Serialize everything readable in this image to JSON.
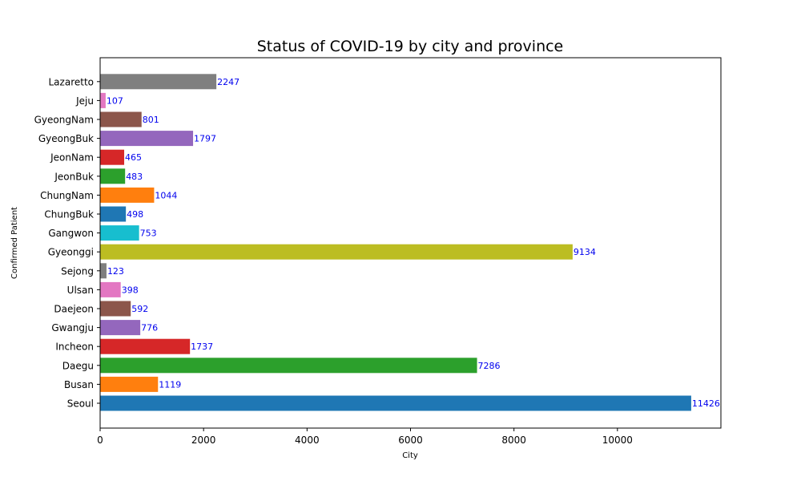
{
  "chart_data": {
    "type": "bar",
    "orientation": "horizontal",
    "title": "Status of COVID-19 by city and province",
    "xlabel": "City",
    "ylabel": "Confirmed Patient",
    "categories": [
      "Seoul",
      "Busan",
      "Daegu",
      "Incheon",
      "Gwangju",
      "Daejeon",
      "Ulsan",
      "Sejong",
      "Gyeonggi",
      "Gangwon",
      "ChungBuk",
      "ChungNam",
      "JeonBuk",
      "JeonNam",
      "GyeongBuk",
      "GyeongNam",
      "Jeju",
      "Lazaretto"
    ],
    "values": [
      11426,
      1119,
      7286,
      1737,
      776,
      592,
      398,
      123,
      9134,
      753,
      498,
      1044,
      483,
      465,
      1797,
      801,
      107,
      2247
    ],
    "colors": [
      "#1f77b4",
      "#ff7f0e",
      "#2ca02c",
      "#d62728",
      "#9467bd",
      "#8c564b",
      "#e377c2",
      "#7f7f7f",
      "#bcbd22",
      "#17becf",
      "#1f77b4",
      "#ff7f0e",
      "#2ca02c",
      "#d62728",
      "#9467bd",
      "#8c564b",
      "#e377c2",
      "#7f7f7f"
    ],
    "xlim": [
      0,
      12000
    ],
    "xticks": [
      0,
      2000,
      4000,
      6000,
      8000,
      10000
    ],
    "grid": false,
    "data_label_color": "#0000ee"
  }
}
